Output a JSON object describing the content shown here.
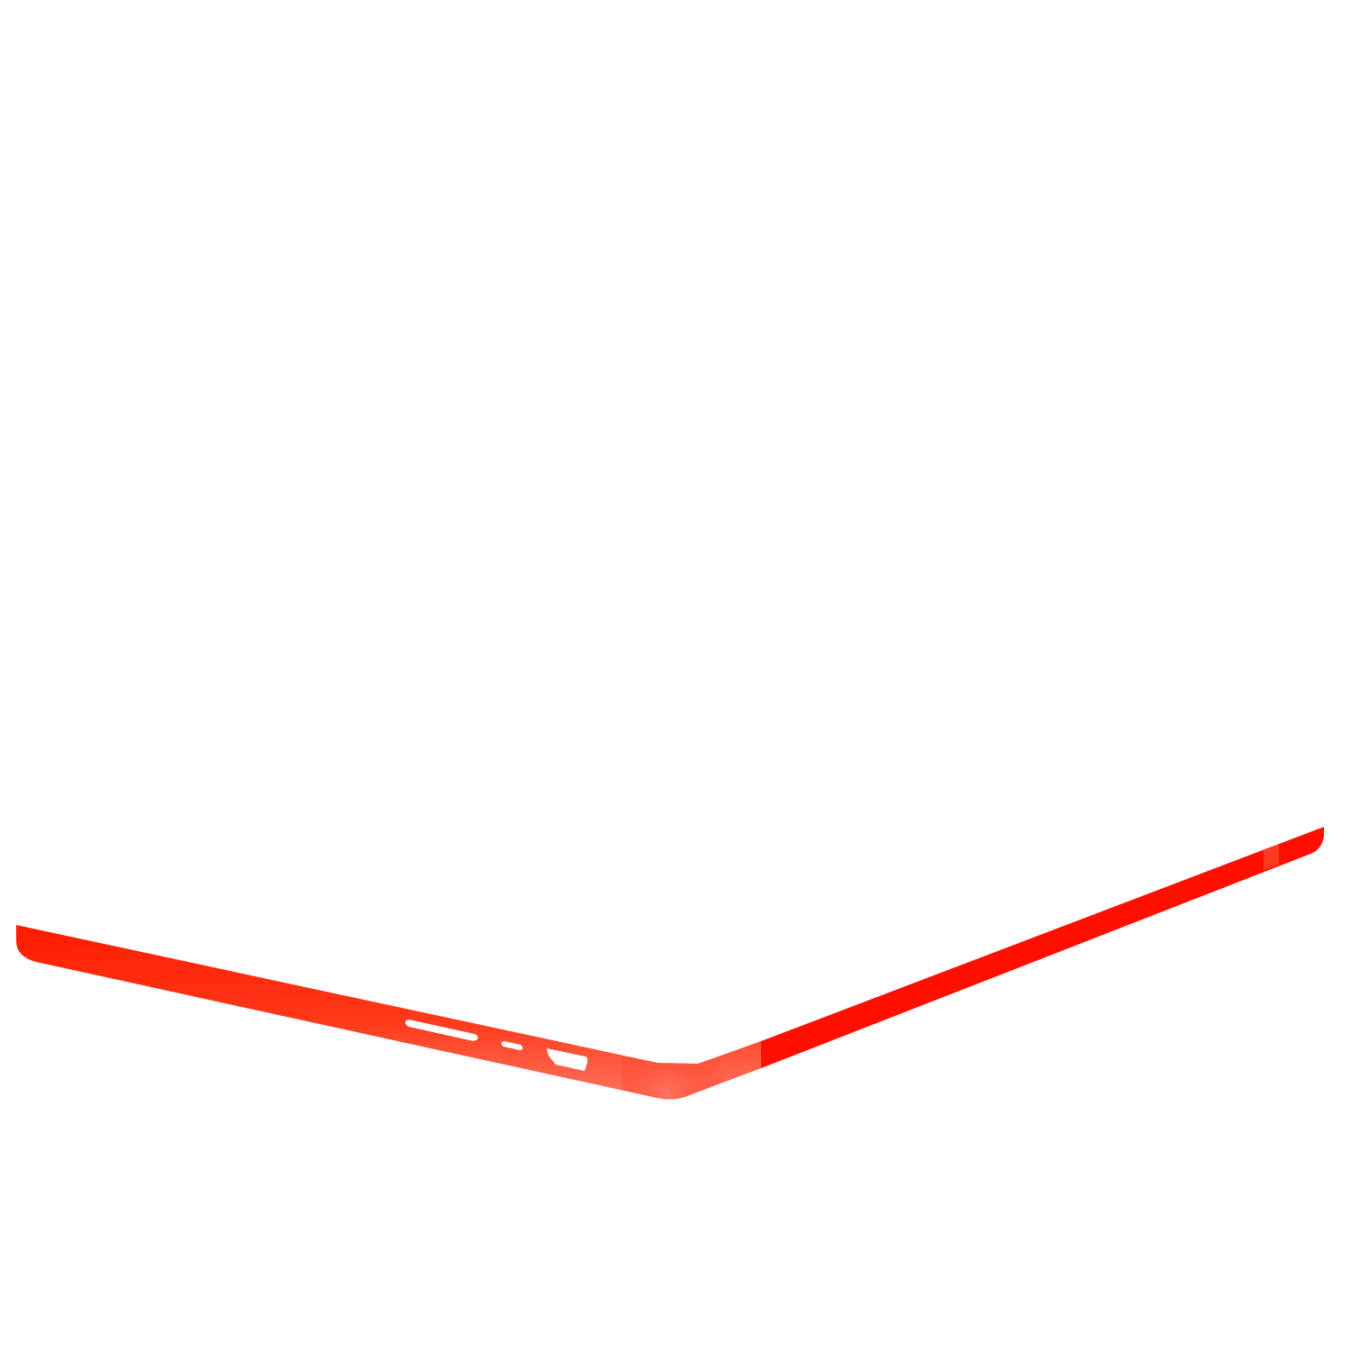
{
  "image": {
    "subject": "laptop-base-edge",
    "colors": {
      "background": "#ffffff",
      "body_dark": "#ff1a00",
      "body_mid": "#ff2a0a",
      "body_highlight": "#ff7060",
      "right_face": "#ff0f00",
      "ports": "#ffffff"
    },
    "ports": [
      "sd-card-slot",
      "usb-c-port",
      "hdmi-port"
    ]
  }
}
